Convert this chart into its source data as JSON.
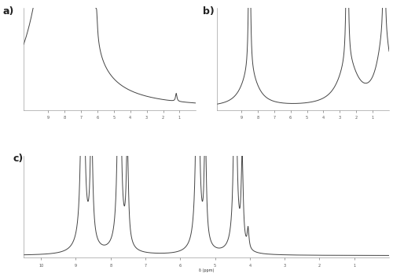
{
  "background_color": "#ffffff",
  "panel_a_label": "a)",
  "panel_b_label": "b)",
  "panel_c_label": "c)",
  "line_color": "#444444",
  "line_width": 0.7,
  "label_fontsize": 9,
  "tick_fontsize": 3.5
}
